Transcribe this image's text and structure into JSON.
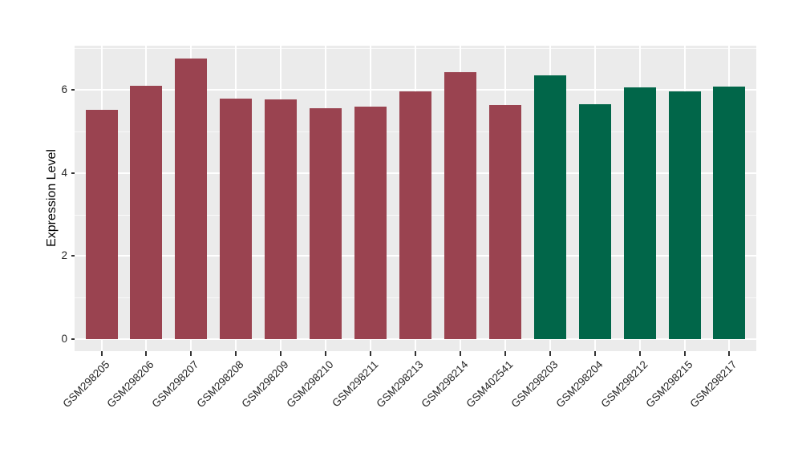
{
  "chart_data": {
    "type": "bar",
    "title": "",
    "xlabel": "",
    "ylabel": "Expression Level",
    "ylim": [
      0,
      7.06
    ],
    "yticks": [
      0,
      2,
      4,
      6
    ],
    "ytick_labels": [
      "0",
      "2",
      "4",
      "6"
    ],
    "yticks_minor": [
      1,
      3,
      5,
      7
    ],
    "grid": "white major and minor horizontal lines plus vertical category lines on gray panel",
    "legend_position": "none",
    "panel_background": "#EBEBEB",
    "colors": {
      "group1": "#9A4350",
      "group2": "#016649"
    },
    "bars": [
      {
        "label": "GSM298205",
        "value": 5.51,
        "group": "group1"
      },
      {
        "label": "GSM298206",
        "value": 6.1,
        "group": "group1"
      },
      {
        "label": "GSM298207",
        "value": 6.75,
        "group": "group1"
      },
      {
        "label": "GSM298208",
        "value": 5.78,
        "group": "group1"
      },
      {
        "label": "GSM298209",
        "value": 5.76,
        "group": "group1"
      },
      {
        "label": "GSM298210",
        "value": 5.56,
        "group": "group1"
      },
      {
        "label": "GSM298211",
        "value": 5.6,
        "group": "group1"
      },
      {
        "label": "GSM298213",
        "value": 5.97,
        "group": "group1"
      },
      {
        "label": "GSM298214",
        "value": 6.42,
        "group": "group1"
      },
      {
        "label": "GSM402541",
        "value": 5.63,
        "group": "group1"
      },
      {
        "label": "GSM298203",
        "value": 6.35,
        "group": "group2"
      },
      {
        "label": "GSM298204",
        "value": 5.65,
        "group": "group2"
      },
      {
        "label": "GSM298212",
        "value": 6.05,
        "group": "group2"
      },
      {
        "label": "GSM298215",
        "value": 5.96,
        "group": "group2"
      },
      {
        "label": "GSM298217",
        "value": 6.07,
        "group": "group2"
      }
    ]
  }
}
